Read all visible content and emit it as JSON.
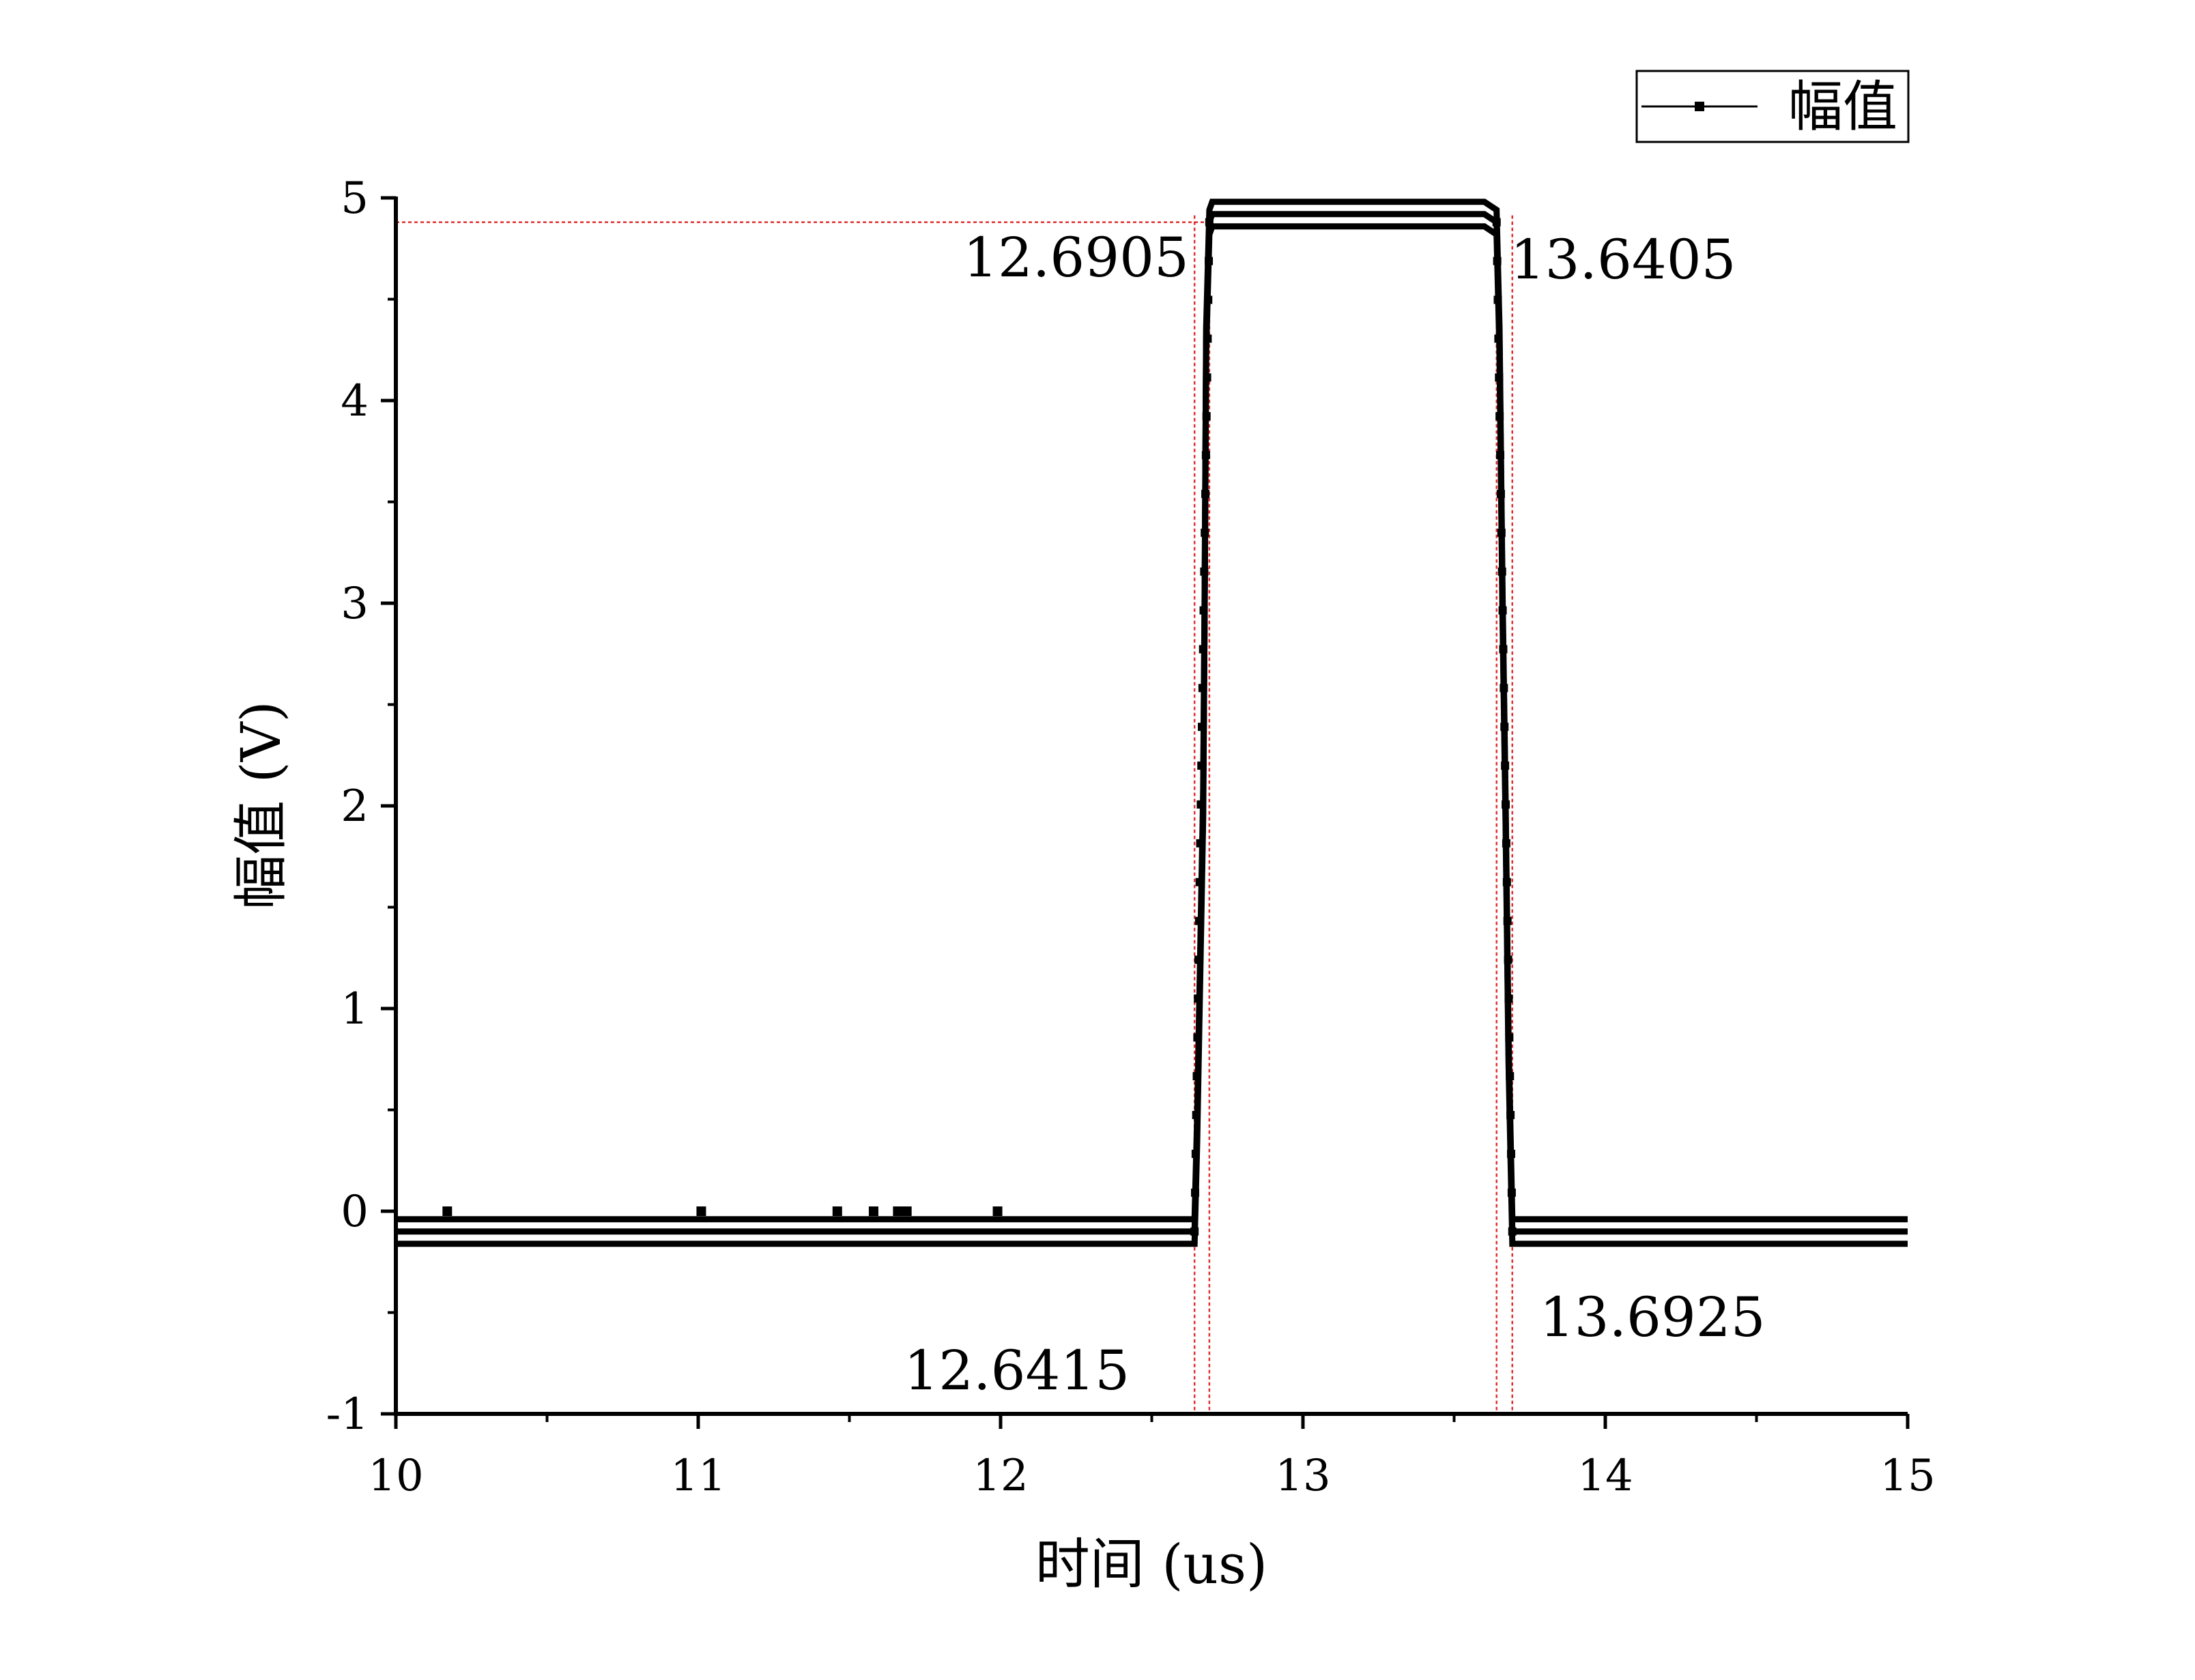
{
  "chart_data": {
    "type": "line",
    "xlabel": "时间 (us)",
    "ylabel": "幅值 (V)",
    "xlim": [
      10,
      15
    ],
    "ylim": [
      -1,
      5
    ],
    "x_ticks": [
      "10",
      "11",
      "12",
      "13",
      "14",
      "15"
    ],
    "y_ticks": [
      "-1",
      "0",
      "1",
      "2",
      "3",
      "4",
      "5"
    ],
    "legend": {
      "position": "top-right",
      "entries": [
        "幅值"
      ]
    },
    "grid": false,
    "colors": {
      "series": "#000000",
      "reference": "#e03030"
    },
    "series": [
      {
        "name": "幅值",
        "x": [
          10.0,
          10.5,
          11.0,
          11.5,
          12.0,
          12.5,
          12.62,
          12.6415,
          12.65,
          12.66,
          12.67,
          12.675,
          12.68,
          12.6905,
          12.7,
          13.0,
          13.3,
          13.6,
          13.6405,
          13.65,
          13.66,
          13.67,
          13.68,
          13.6925,
          13.7,
          14.0,
          14.5,
          15.0
        ],
        "values": [
          -0.1,
          -0.1,
          -0.1,
          -0.1,
          -0.1,
          -0.1,
          -0.1,
          -0.1,
          0.4,
          1.2,
          2.0,
          3.0,
          4.3,
          4.88,
          4.92,
          4.92,
          4.92,
          4.92,
          4.88,
          4.3,
          3.0,
          2.0,
          0.8,
          -0.1,
          -0.1,
          -0.1,
          -0.1,
          -0.1
        ]
      }
    ],
    "outliers": [
      {
        "x": 10.17,
        "y": 0.0
      },
      {
        "x": 11.01,
        "y": 0.0
      },
      {
        "x": 11.46,
        "y": 0.0
      },
      {
        "x": 11.58,
        "y": 0.0
      },
      {
        "x": 11.66,
        "y": 0.0
      },
      {
        "x": 11.69,
        "y": 0.0
      },
      {
        "x": 11.99,
        "y": 0.0
      }
    ],
    "annotations": [
      {
        "text": "12.6905",
        "x": 12.6905
      },
      {
        "text": "13.6405",
        "x": 13.6405
      },
      {
        "text": "12.6415",
        "x": 12.6415
      },
      {
        "text": "13.6925",
        "x": 13.6925
      }
    ],
    "reference_lines": {
      "horizontal": {
        "y": 4.88,
        "x_from": 10,
        "x_to": 12.6905
      },
      "vertical": [
        12.6415,
        12.6905,
        13.6405,
        13.6925
      ]
    }
  }
}
